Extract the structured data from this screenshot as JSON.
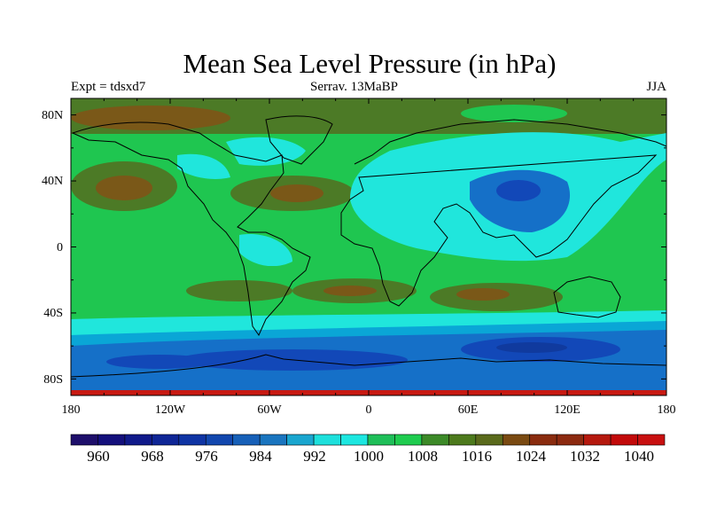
{
  "title": "Mean Sea Level Pressure (in hPa)",
  "subtitle": {
    "left": "Expt = tdsxd7",
    "center": "Serrav.   13MaBP",
    "right": "JJA"
  },
  "map": {
    "projection": "cylindrical-equidistant",
    "lon_range": [
      -180,
      180
    ],
    "lat_range": [
      -90,
      90
    ],
    "lat_labels": [
      "80N",
      "40N",
      "0",
      "40S",
      "80S"
    ],
    "lon_labels": [
      "180",
      "120W",
      "60W",
      "0",
      "60E",
      "120E",
      "180"
    ]
  },
  "colorbar": {
    "levels": [
      960,
      964,
      968,
      972,
      976,
      980,
      984,
      988,
      992,
      996,
      1000,
      1004,
      1008,
      1012,
      1016,
      1020,
      1024,
      1028,
      1032,
      1036,
      1040
    ],
    "labels": [
      "960",
      "968",
      "976",
      "984",
      "992",
      "1000",
      "1008",
      "1016",
      "1024",
      "1032",
      "1040"
    ],
    "colors": [
      "#1e0f6b",
      "#14107c",
      "#101a8a",
      "#0f2696",
      "#0f34a4",
      "#1247ae",
      "#1760b8",
      "#1a75bf",
      "#1aa6cf",
      "#1ee0dc",
      "#1de7e0",
      "#1fbf59",
      "#1fcc4f",
      "#3c8a28",
      "#4d7a1d",
      "#5a6a1c",
      "#7a4a12",
      "#8a2c0f",
      "#8c2a10",
      "#b5190e",
      "#c20a0a",
      "#c81010"
    ],
    "palette_names": {
      "cyan": "#20e6dc",
      "green": "#1fc650",
      "olive": "#4c7a26",
      "brown": "#7a5818",
      "light_blue": "#0aa6d6",
      "blue": "#1570c8",
      "deep_blue": "#1248b8",
      "darker_blue": "#103a9e",
      "red": "#c81a12"
    }
  }
}
